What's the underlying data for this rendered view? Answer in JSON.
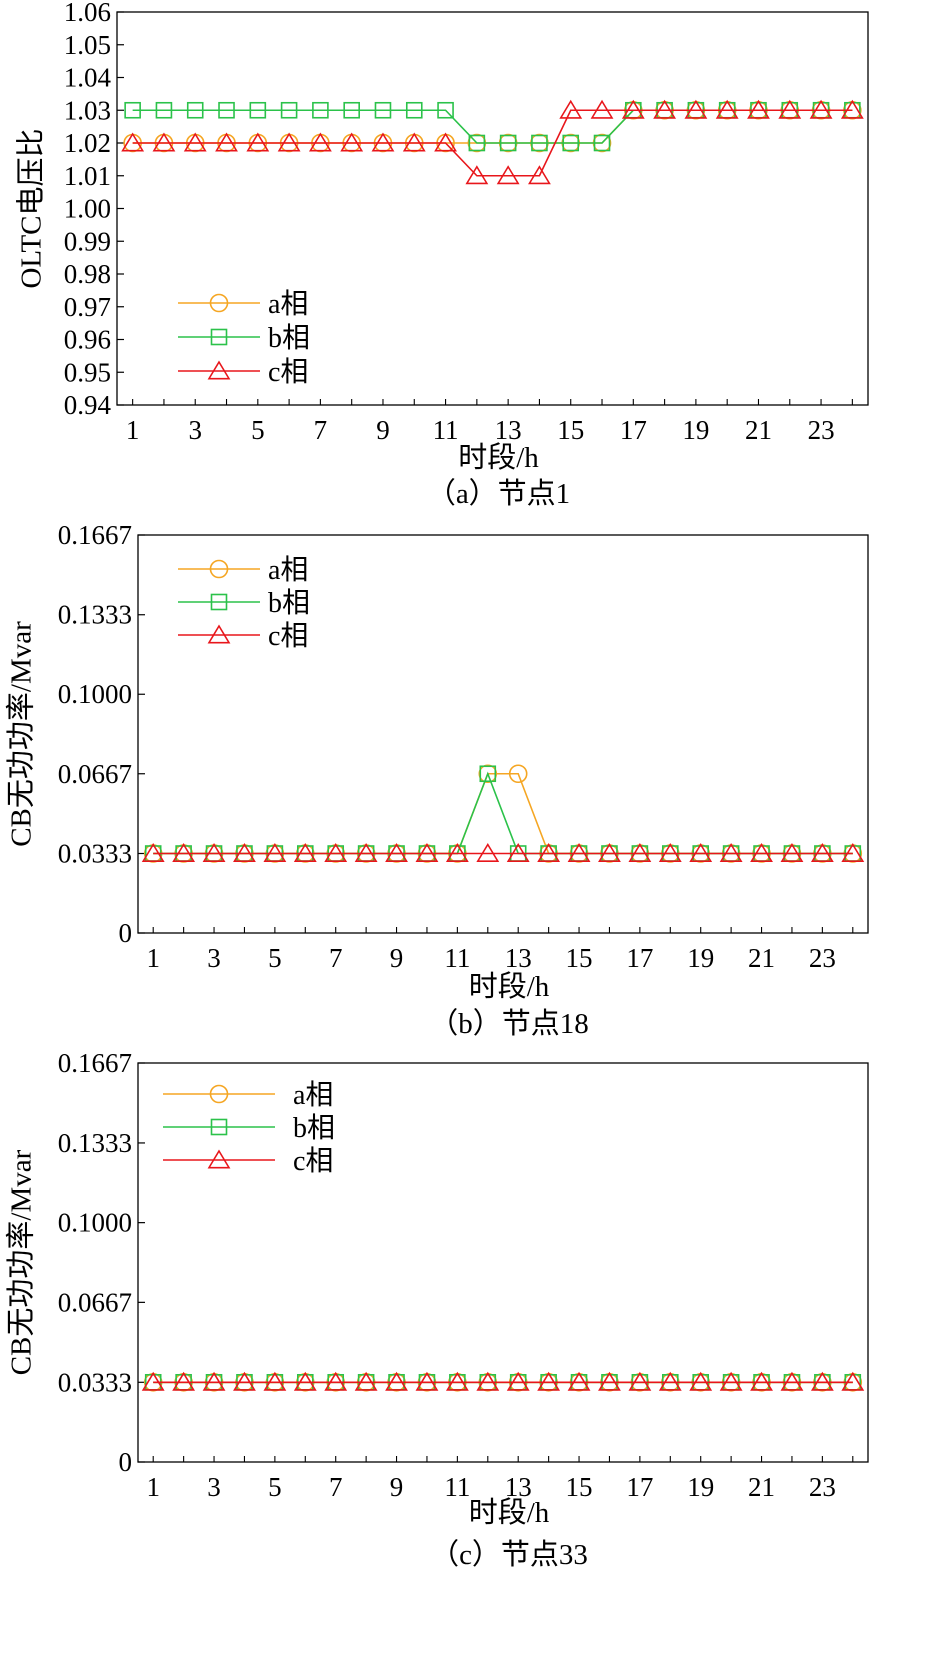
{
  "chart_data": [
    {
      "type": "line",
      "caption": "（a）节点1",
      "xlabel": "时段/h",
      "ylabel": "OLTC电压比",
      "xlim": [
        0.5,
        24.5
      ],
      "xticks": [
        1,
        3,
        5,
        7,
        9,
        11,
        13,
        15,
        17,
        19,
        21,
        23
      ],
      "ylim": [
        0.94,
        1.06
      ],
      "yticks": [
        "0.94",
        "0.95",
        "0.96",
        "0.97",
        "0.98",
        "0.99",
        "1.00",
        "1.01",
        "1.02",
        "1.03",
        "1.04",
        "1.05",
        "1.06"
      ],
      "x": [
        1,
        2,
        3,
        4,
        5,
        6,
        7,
        8,
        9,
        10,
        11,
        12,
        13,
        14,
        15,
        16,
        17,
        18,
        19,
        20,
        21,
        22,
        23,
        24
      ],
      "legend_position": "lower-left",
      "series": [
        {
          "name": "a相",
          "marker": "circle",
          "color": "#F5A623",
          "values": [
            1.02,
            1.02,
            1.02,
            1.02,
            1.02,
            1.02,
            1.02,
            1.02,
            1.02,
            1.02,
            1.02,
            1.02,
            1.02,
            1.02,
            1.02,
            1.02,
            1.03,
            1.03,
            1.03,
            1.03,
            1.03,
            1.03,
            1.03,
            1.03
          ]
        },
        {
          "name": "b相",
          "marker": "square",
          "color": "#2BC24A",
          "values": [
            1.03,
            1.03,
            1.03,
            1.03,
            1.03,
            1.03,
            1.03,
            1.03,
            1.03,
            1.03,
            1.03,
            1.02,
            1.02,
            1.02,
            1.02,
            1.02,
            1.03,
            1.03,
            1.03,
            1.03,
            1.03,
            1.03,
            1.03,
            1.03
          ]
        },
        {
          "name": "c相",
          "marker": "triangle",
          "color": "#E8161B",
          "values": [
            1.02,
            1.02,
            1.02,
            1.02,
            1.02,
            1.02,
            1.02,
            1.02,
            1.02,
            1.02,
            1.02,
            1.01,
            1.01,
            1.01,
            1.03,
            1.03,
            1.03,
            1.03,
            1.03,
            1.03,
            1.03,
            1.03,
            1.03,
            1.03
          ]
        }
      ]
    },
    {
      "type": "line",
      "caption": "（b）节点18",
      "xlabel": "时段/h",
      "ylabel": "CB无功功率/Mvar",
      "xlim": [
        0.5,
        24.5
      ],
      "xticks": [
        1,
        3,
        5,
        7,
        9,
        11,
        13,
        15,
        17,
        19,
        21,
        23
      ],
      "ylim": [
        0,
        0.1667
      ],
      "yticks": [
        "0",
        "0.0333",
        "0.0667",
        "0.1000",
        "0.1333",
        "0.1667"
      ],
      "x": [
        1,
        2,
        3,
        4,
        5,
        6,
        7,
        8,
        9,
        10,
        11,
        12,
        13,
        14,
        15,
        16,
        17,
        18,
        19,
        20,
        21,
        22,
        23,
        24
      ],
      "legend_position": "top-left",
      "series": [
        {
          "name": "a相",
          "marker": "circle",
          "color": "#F5A623",
          "values": [
            0.0333,
            0.0333,
            0.0333,
            0.0333,
            0.0333,
            0.0333,
            0.0333,
            0.0333,
            0.0333,
            0.0333,
            0.0333,
            0.0667,
            0.0667,
            0.0333,
            0.0333,
            0.0333,
            0.0333,
            0.0333,
            0.0333,
            0.0333,
            0.0333,
            0.0333,
            0.0333,
            0.0333
          ]
        },
        {
          "name": "b相",
          "marker": "square",
          "color": "#2BC24A",
          "values": [
            0.0333,
            0.0333,
            0.0333,
            0.0333,
            0.0333,
            0.0333,
            0.0333,
            0.0333,
            0.0333,
            0.0333,
            0.0333,
            0.0667,
            0.0333,
            0.0333,
            0.0333,
            0.0333,
            0.0333,
            0.0333,
            0.0333,
            0.0333,
            0.0333,
            0.0333,
            0.0333,
            0.0333
          ]
        },
        {
          "name": "c相",
          "marker": "triangle",
          "color": "#E8161B",
          "values": [
            0.0333,
            0.0333,
            0.0333,
            0.0333,
            0.0333,
            0.0333,
            0.0333,
            0.0333,
            0.0333,
            0.0333,
            0.0333,
            0.0333,
            0.0333,
            0.0333,
            0.0333,
            0.0333,
            0.0333,
            0.0333,
            0.0333,
            0.0333,
            0.0333,
            0.0333,
            0.0333,
            0.0333
          ]
        }
      ]
    },
    {
      "type": "line",
      "caption": "（c）节点33",
      "xlabel": "时段/h",
      "ylabel": "CB无功功率/Mvar",
      "xlim": [
        0.5,
        24.5
      ],
      "xticks": [
        1,
        3,
        5,
        7,
        9,
        11,
        13,
        15,
        17,
        19,
        21,
        23
      ],
      "ylim": [
        0,
        0.1667
      ],
      "yticks": [
        "0",
        "0.0333",
        "0.0667",
        "0.1000",
        "0.1333",
        "0.1667"
      ],
      "x": [
        1,
        2,
        3,
        4,
        5,
        6,
        7,
        8,
        9,
        10,
        11,
        12,
        13,
        14,
        15,
        16,
        17,
        18,
        19,
        20,
        21,
        22,
        23,
        24
      ],
      "legend_position": "top-left",
      "series": [
        {
          "name": "a相",
          "marker": "circle",
          "color": "#F5A623",
          "values": [
            0.0333,
            0.0333,
            0.0333,
            0.0333,
            0.0333,
            0.0333,
            0.0333,
            0.0333,
            0.0333,
            0.0333,
            0.0333,
            0.0333,
            0.0333,
            0.0333,
            0.0333,
            0.0333,
            0.0333,
            0.0333,
            0.0333,
            0.0333,
            0.0333,
            0.0333,
            0.0333,
            0.0333
          ]
        },
        {
          "name": "b相",
          "marker": "square",
          "color": "#2BC24A",
          "values": [
            0.0333,
            0.0333,
            0.0333,
            0.0333,
            0.0333,
            0.0333,
            0.0333,
            0.0333,
            0.0333,
            0.0333,
            0.0333,
            0.0333,
            0.0333,
            0.0333,
            0.0333,
            0.0333,
            0.0333,
            0.0333,
            0.0333,
            0.0333,
            0.0333,
            0.0333,
            0.0333,
            0.0333
          ]
        },
        {
          "name": "c相",
          "marker": "triangle",
          "color": "#E8161B",
          "values": [
            0.0333,
            0.0333,
            0.0333,
            0.0333,
            0.0333,
            0.0333,
            0.0333,
            0.0333,
            0.0333,
            0.0333,
            0.0333,
            0.0333,
            0.0333,
            0.0333,
            0.0333,
            0.0333,
            0.0333,
            0.0333,
            0.0333,
            0.0333,
            0.0333,
            0.0333,
            0.0333,
            0.0333
          ]
        }
      ]
    }
  ]
}
